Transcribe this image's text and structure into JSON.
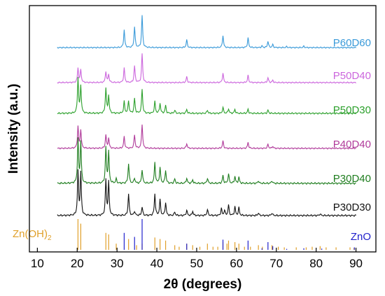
{
  "chart_data": {
    "type": "line",
    "xlabel": "2θ (degrees)",
    "ylabel": "Intensity (a.u.)",
    "xlim": [
      8,
      95
    ],
    "xticks": [
      10,
      20,
      30,
      40,
      50,
      60,
      70,
      80,
      90
    ],
    "grid": false,
    "series": [
      {
        "name": "P60D60",
        "color": "#3a9ad9",
        "x_start": 15,
        "peaks": [
          [
            31.8,
            0.55
          ],
          [
            34.4,
            0.65
          ],
          [
            36.3,
            1.0
          ],
          [
            47.5,
            0.24
          ],
          [
            56.6,
            0.38
          ],
          [
            62.9,
            0.3
          ],
          [
            66.4,
            0.05
          ],
          [
            67.9,
            0.2
          ],
          [
            69.1,
            0.09
          ],
          [
            72.6,
            0.03
          ],
          [
            76.9,
            0.04
          ]
        ]
      },
      {
        "name": "P50D40",
        "color": "#cc66dd",
        "x_start": 15,
        "peaks": [
          [
            20.2,
            0.45
          ],
          [
            20.9,
            0.4
          ],
          [
            27.2,
            0.35
          ],
          [
            27.9,
            0.25
          ],
          [
            31.8,
            0.45
          ],
          [
            34.4,
            0.52
          ],
          [
            36.3,
            0.9
          ],
          [
            47.5,
            0.18
          ],
          [
            56.6,
            0.3
          ],
          [
            62.9,
            0.22
          ],
          [
            67.9,
            0.15
          ],
          [
            69.1,
            0.07
          ]
        ]
      },
      {
        "name": "P50D30",
        "color": "#2ca02c",
        "x_start": 15,
        "peaks": [
          [
            20.2,
            0.9
          ],
          [
            20.9,
            0.7
          ],
          [
            27.2,
            0.65
          ],
          [
            27.9,
            0.45
          ],
          [
            31.8,
            0.3
          ],
          [
            32.9,
            0.32
          ],
          [
            34.4,
            0.38
          ],
          [
            36.3,
            0.62
          ],
          [
            39.5,
            0.3
          ],
          [
            40.8,
            0.26
          ],
          [
            42.2,
            0.2
          ],
          [
            44.5,
            0.08
          ],
          [
            47.5,
            0.1
          ],
          [
            52.7,
            0.08
          ],
          [
            56.6,
            0.15
          ],
          [
            58.0,
            0.12
          ],
          [
            59.6,
            0.1
          ],
          [
            62.9,
            0.1
          ],
          [
            67.9,
            0.08
          ]
        ]
      },
      {
        "name": "P40D40",
        "color": "#b03a9a",
        "x_start": 15,
        "peaks": [
          [
            20.2,
            0.65
          ],
          [
            20.9,
            0.55
          ],
          [
            27.2,
            0.4
          ],
          [
            27.9,
            0.3
          ],
          [
            31.8,
            0.35
          ],
          [
            34.4,
            0.4
          ],
          [
            36.3,
            0.72
          ],
          [
            47.5,
            0.14
          ],
          [
            56.6,
            0.22
          ],
          [
            62.9,
            0.18
          ],
          [
            67.9,
            0.12
          ],
          [
            69.1,
            0.06
          ]
        ]
      },
      {
        "name": "P30D40",
        "color": "#1e7d1e",
        "x_start": 15,
        "peaks": [
          [
            20.2,
            1.0
          ],
          [
            20.9,
            0.95
          ],
          [
            27.2,
            0.82
          ],
          [
            27.9,
            0.72
          ],
          [
            29.8,
            0.1
          ],
          [
            32.9,
            0.46
          ],
          [
            34.4,
            0.12
          ],
          [
            36.3,
            0.32
          ],
          [
            39.5,
            0.48
          ],
          [
            40.8,
            0.36
          ],
          [
            42.2,
            0.3
          ],
          [
            44.5,
            0.1
          ],
          [
            47.5,
            0.12
          ],
          [
            49.0,
            0.08
          ],
          [
            52.7,
            0.12
          ],
          [
            56.6,
            0.18
          ],
          [
            58.0,
            0.22
          ],
          [
            59.6,
            0.16
          ],
          [
            60.6,
            0.14
          ],
          [
            65.5,
            0.06
          ],
          [
            68.9,
            0.06
          ]
        ]
      },
      {
        "name": "P30D30",
        "color": "#111111",
        "x_start": 15,
        "peaks": [
          [
            20.2,
            1.0
          ],
          [
            20.9,
            0.98
          ],
          [
            27.2,
            0.82
          ],
          [
            27.9,
            0.76
          ],
          [
            32.9,
            0.5
          ],
          [
            34.4,
            0.1
          ],
          [
            36.3,
            0.2
          ],
          [
            39.5,
            0.5
          ],
          [
            40.8,
            0.36
          ],
          [
            42.2,
            0.3
          ],
          [
            44.5,
            0.08
          ],
          [
            47.5,
            0.12
          ],
          [
            49.0,
            0.1
          ],
          [
            52.7,
            0.14
          ],
          [
            56.2,
            0.16
          ],
          [
            57.0,
            0.12
          ],
          [
            58.0,
            0.24
          ],
          [
            59.6,
            0.2
          ],
          [
            60.6,
            0.18
          ],
          [
            65.5,
            0.06
          ],
          [
            68.9,
            0.06
          ],
          [
            81.0,
            0.04
          ]
        ]
      }
    ],
    "references": [
      {
        "name": "Zn(OH)",
        "subscript": "2",
        "color": "#e0a02a",
        "sticks": [
          [
            20.2,
            1.0
          ],
          [
            20.9,
            0.85
          ],
          [
            27.2,
            0.55
          ],
          [
            27.9,
            0.5
          ],
          [
            29.8,
            0.2
          ],
          [
            32.9,
            0.35
          ],
          [
            34.9,
            0.15
          ],
          [
            36.3,
            0.2
          ],
          [
            39.5,
            0.4
          ],
          [
            40.8,
            0.35
          ],
          [
            42.2,
            0.3
          ],
          [
            44.5,
            0.15
          ],
          [
            45.6,
            0.1
          ],
          [
            47.5,
            0.2
          ],
          [
            49.0,
            0.15
          ],
          [
            50.8,
            0.1
          ],
          [
            52.7,
            0.2
          ],
          [
            54.1,
            0.1
          ],
          [
            55.3,
            0.1
          ],
          [
            56.6,
            0.25
          ],
          [
            57.6,
            0.2
          ],
          [
            58.0,
            0.3
          ],
          [
            59.6,
            0.25
          ],
          [
            60.6,
            0.2
          ],
          [
            62.0,
            0.1
          ],
          [
            63.5,
            0.1
          ],
          [
            65.5,
            0.15
          ],
          [
            66.5,
            0.1
          ],
          [
            68.9,
            0.15
          ],
          [
            70.5,
            0.1
          ],
          [
            72.0,
            0.08
          ],
          [
            75.0,
            0.08
          ],
          [
            77.5,
            0.08
          ],
          [
            79.0,
            0.1
          ],
          [
            81.0,
            0.12
          ],
          [
            82.5,
            0.08
          ],
          [
            85.0,
            0.08
          ],
          [
            88.5,
            0.08
          ],
          [
            89.5,
            0.06
          ]
        ]
      },
      {
        "name": "ZnO",
        "color": "#2222cc",
        "sticks": [
          [
            31.8,
            0.55
          ],
          [
            34.4,
            0.42
          ],
          [
            36.3,
            1.0
          ],
          [
            47.5,
            0.2
          ],
          [
            56.6,
            0.33
          ],
          [
            62.9,
            0.3
          ],
          [
            66.4,
            0.05
          ],
          [
            67.9,
            0.25
          ],
          [
            69.1,
            0.12
          ],
          [
            72.6,
            0.03
          ],
          [
            76.9,
            0.05
          ],
          [
            81.4,
            0.04
          ],
          [
            89.6,
            0.08
          ]
        ]
      }
    ]
  }
}
